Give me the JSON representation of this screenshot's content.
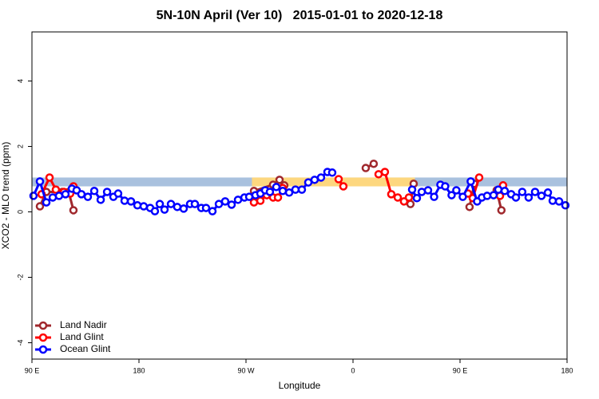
{
  "chart_data": {
    "type": "line",
    "title": "5N-10N April (Ver 10)   2015-01-01 to 2020-12-18",
    "x_label": "Longitude",
    "y_label": "XCO2 - MLO trend (ppm)",
    "xlim": [
      90,
      540
    ],
    "xticks": [
      {
        "value": 90,
        "label": "90 E"
      },
      180,
      {
        "value": 270,
        "label": "90 W"
      },
      {
        "value": 360,
        "label": "0"
      },
      {
        "value": 450,
        "label": "90 E"
      },
      180
    ],
    "ylim": [
      -4.5,
      5.5
    ],
    "yticks": [
      -4,
      -2,
      0,
      2,
      4
    ],
    "bands": [
      {
        "color": "#a9c1de",
        "ylim": [
          0.78,
          1.05
        ],
        "xlim": [
          90,
          540
        ]
      },
      {
        "color": "#fdd77f",
        "ylim": [
          0.78,
          1.05
        ],
        "xlim": [
          275,
          412
        ]
      }
    ],
    "legend": "bottom-left",
    "series": [
      {
        "name": "Land Nadir",
        "color": "#a0282d",
        "x": [
          96.7,
          102.1,
          115.5,
          120.9,
          124.9,
          null,
          276.7,
          292.8,
          298.2,
          302.2,
          null,
          370.7,
          377.4,
          null,
          408.3,
          411.0,
          null,
          458.0,
          462.0,
          null,
          480.8,
          484.8
        ],
        "values": [
          0.17,
          0.61,
          0.61,
          0.61,
          0.05,
          null,
          0.64,
          0.83,
          0.98,
          0.81,
          null,
          1.34,
          1.47,
          null,
          0.24,
          0.86,
          null,
          0.15,
          0.86,
          null,
          0.66,
          0.05
        ]
      },
      {
        "name": "Land Glint",
        "color": "#ff0000",
        "x": [
          98.1,
          104.8,
          110.1,
          116.9,
          122.2,
          124.9,
          null,
          276.7,
          282.1,
          287.5,
          292.8,
          296.9,
          300.9,
          null,
          347.9,
          351.9,
          null,
          381.5,
          386.8,
          392.2,
          397.6,
          402.9,
          407.0,
          null,
          456.7,
          460.7,
          466.1,
          null,
          483.6,
          486.2
        ],
        "values": [
          0.54,
          1.05,
          0.68,
          0.61,
          0.56,
          0.78,
          null,
          0.29,
          0.34,
          0.51,
          0.44,
          0.44,
          0.73,
          null,
          1.0,
          0.78,
          null,
          1.15,
          1.22,
          0.54,
          0.44,
          0.32,
          0.44,
          null,
          0.56,
          0.42,
          1.05,
          null,
          0.49,
          0.81
        ]
      },
      {
        "name": "Ocean Glint",
        "color": "#0000ff",
        "x": [
          91.3,
          96.7,
          102.1,
          107.5,
          112.8,
          118.2,
          123.6,
          127.6,
          131.6,
          137.0,
          142.4,
          147.8,
          153.2,
          158.5,
          162.5,
          167.9,
          173.3,
          178.7,
          184.0,
          189.4,
          193.4,
          197.5,
          201.5,
          206.9,
          212.2,
          217.6,
          223.0,
          227.0,
          232.4,
          236.4,
          241.8,
          247.2,
          252.5,
          257.9,
          263.3,
          268.7,
          272.7,
          278.0,
          282.1,
          286.1,
          290.1,
          295.5,
          300.9,
          306.3,
          311.6,
          317.0,
          322.4,
          327.7,
          333.1,
          338.5,
          342.5,
          null,
          409.7,
          413.7,
          417.8,
          423.1,
          428.2,
          433.5,
          437.5,
          442.9,
          446.9,
          452.3,
          459.0,
          464.4,
          468.4,
          472.8,
          478.2,
          482.2,
          487.6,
          493.0,
          497.0,
          502.3,
          507.7,
          513.1,
          518.5,
          523.9,
          527.9,
          533.3,
          538.6
        ],
        "values": [
          0.49,
          0.93,
          0.29,
          0.44,
          0.49,
          0.54,
          0.71,
          0.66,
          0.54,
          0.46,
          0.64,
          0.37,
          0.61,
          0.46,
          0.56,
          0.34,
          0.32,
          0.2,
          0.17,
          0.12,
          0.02,
          0.24,
          0.07,
          0.24,
          0.15,
          0.1,
          0.24,
          0.24,
          0.12,
          0.12,
          0.02,
          0.24,
          0.32,
          0.22,
          0.37,
          0.44,
          0.46,
          0.51,
          0.56,
          0.66,
          0.61,
          0.76,
          0.64,
          0.59,
          0.68,
          0.68,
          0.9,
          0.98,
          1.05,
          1.22,
          1.2,
          null,
          0.68,
          0.42,
          0.61,
          0.66,
          0.46,
          0.83,
          0.78,
          0.51,
          0.66,
          0.46,
          0.93,
          0.32,
          0.44,
          0.49,
          0.51,
          0.68,
          0.64,
          0.54,
          0.44,
          0.61,
          0.44,
          0.61,
          0.49,
          0.59,
          0.34,
          0.32,
          0.2
        ]
      }
    ]
  }
}
